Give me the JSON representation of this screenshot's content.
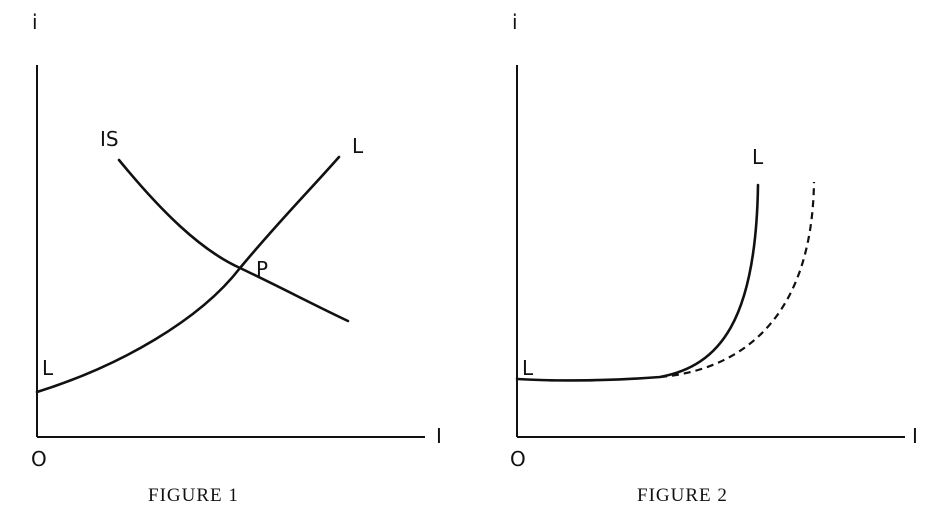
{
  "figure1": {
    "y_axis_label": "i",
    "x_axis_label": "I",
    "origin_label": "O",
    "is_curve_label": "IS",
    "lm_curve_start_label": "L",
    "lm_curve_end_label": "L",
    "intersection_label": "P",
    "caption": "FIGURE 1"
  },
  "figure2": {
    "y_axis_label": "i",
    "x_axis_label": "I",
    "origin_label": "O",
    "lm_curve_start_label": "L",
    "lm_curve_end_label": "L",
    "caption": "FIGURE 2"
  }
}
